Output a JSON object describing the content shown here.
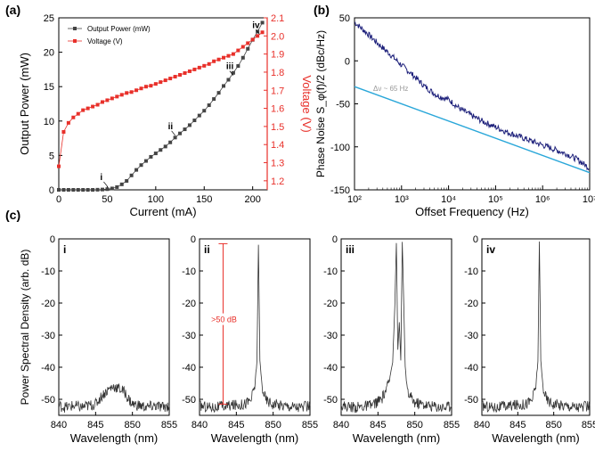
{
  "panel_labels": {
    "a": "(a)",
    "b": "(b)",
    "c": "(c)"
  },
  "colors": {
    "black": "#000000",
    "red": "#e8302a",
    "blue_trace": "#1c1f7a",
    "cyan_fit": "#2aa7d9"
  },
  "chart_data": [
    {
      "id": "a",
      "type": "line",
      "xlabel": "Current (mA)",
      "ylabel": "Output Power (mW)",
      "y2label": "Voltage (V)",
      "xlim": [
        0,
        215
      ],
      "ylim": [
        0,
        25
      ],
      "y2lim": [
        1.15,
        2.1
      ],
      "xticks": [
        0,
        50,
        100,
        150,
        200
      ],
      "yticks": [
        0,
        5,
        10,
        15,
        20,
        25
      ],
      "y2ticks": [
        1.2,
        1.3,
        1.4,
        1.5,
        1.6,
        1.7,
        1.8,
        1.9,
        2.0,
        2.1
      ],
      "legend_position": "top-left",
      "series": [
        {
          "name": "Output Power (mW)",
          "axis": "left",
          "color": "#444444",
          "x": [
            0,
            5,
            10,
            15,
            20,
            25,
            30,
            35,
            40,
            45,
            50,
            55,
            60,
            65,
            70,
            75,
            80,
            85,
            90,
            95,
            100,
            105,
            110,
            115,
            120,
            125,
            130,
            135,
            140,
            145,
            150,
            155,
            160,
            165,
            170,
            175,
            180,
            185,
            190,
            195,
            200,
            205,
            210
          ],
          "y": [
            0,
            0,
            0,
            0,
            0,
            0,
            0,
            0,
            0.02,
            0.05,
            0.1,
            0.2,
            0.4,
            0.8,
            1.3,
            2.1,
            2.9,
            3.6,
            4.2,
            4.8,
            5.3,
            5.8,
            6.3,
            6.9,
            7.6,
            8.2,
            8.8,
            9.4,
            10.1,
            10.8,
            11.5,
            12.3,
            13.2,
            14.1,
            15.1,
            16.0,
            17.0,
            18.0,
            19.2,
            20.5,
            21.8,
            23.0,
            24.3
          ]
        },
        {
          "name": "Voltage (V)",
          "axis": "right",
          "color": "#e8302a",
          "x": [
            0,
            5,
            10,
            15,
            20,
            25,
            30,
            35,
            40,
            45,
            50,
            55,
            60,
            65,
            70,
            75,
            80,
            85,
            90,
            95,
            100,
            105,
            110,
            115,
            120,
            125,
            130,
            135,
            140,
            145,
            150,
            155,
            160,
            165,
            170,
            175,
            180,
            185,
            190,
            195,
            200,
            205,
            210
          ],
          "y": [
            1.28,
            1.47,
            1.52,
            1.55,
            1.57,
            1.59,
            1.6,
            1.61,
            1.62,
            1.635,
            1.645,
            1.655,
            1.665,
            1.675,
            1.685,
            1.69,
            1.7,
            1.71,
            1.72,
            1.725,
            1.735,
            1.745,
            1.755,
            1.765,
            1.775,
            1.785,
            1.795,
            1.805,
            1.815,
            1.825,
            1.835,
            1.845,
            1.86,
            1.87,
            1.88,
            1.89,
            1.9,
            1.92,
            1.94,
            1.96,
            1.98,
            2.0,
            2.02
          ]
        }
      ],
      "annotations": [
        {
          "text": "i",
          "x": 50,
          "y": 0.4
        },
        {
          "text": "ii",
          "x": 120,
          "y": 7.8
        },
        {
          "text": "iii",
          "x": 180,
          "y": 16.5
        },
        {
          "text": "iv",
          "x": 207,
          "y": 22.5
        }
      ]
    },
    {
      "id": "b",
      "type": "line",
      "xlabel": "Offset Frequency (Hz)",
      "ylabel": "Phase Noise S_φ(f)/2 (dBc/Hz)",
      "xscale": "log",
      "xlim": [
        100,
        10000000
      ],
      "ylim": [
        -150,
        50
      ],
      "xticks": [
        100,
        1000,
        10000,
        100000,
        1000000,
        10000000
      ],
      "xtick_labels": [
        "10²",
        "10³",
        "10⁴",
        "10⁵",
        "10⁶",
        "10⁷"
      ],
      "yticks": [
        -150,
        -100,
        -50,
        0,
        50
      ],
      "series": [
        {
          "name": "",
          "color": "#1c1f7a",
          "x": [
            100,
            178,
            316,
            562,
            1000,
            1778,
            3162,
            5623,
            10000,
            17783,
            31623,
            56234,
            100000,
            177828,
            316228,
            562341,
            1000000,
            1778279,
            3162278,
            5623413,
            10000000
          ],
          "y": [
            45,
            33,
            20,
            8,
            -5,
            -17,
            -30,
            -40,
            -45,
            -56,
            -64,
            -71,
            -77,
            -83,
            -88,
            -93,
            -98,
            -103,
            -108,
            -115,
            -125
          ]
        },
        {
          "name": "Δν ~ 65 Hz",
          "color": "#2aa7d9",
          "x": [
            100,
            10000000
          ],
          "y": [
            -30,
            -130
          ]
        }
      ],
      "annotations": [
        {
          "text": "Δν ~ 65 Hz",
          "x": 250,
          "y": -35
        }
      ]
    },
    {
      "id": "c-i",
      "type": "line",
      "panel_label": "i",
      "xlabel": "Wavelength (nm)",
      "ylabel": "Power Spectral Density (arb. dB)",
      "xlim": [
        840,
        855
      ],
      "ylim": [
        -55,
        0
      ],
      "xticks": [
        840,
        845,
        850,
        855
      ],
      "yticks": [
        -50,
        -40,
        -30,
        -20,
        -10,
        0
      ],
      "series": [
        {
          "name": "",
          "color": "#333333",
          "x": [
            840,
            841,
            842,
            843,
            844,
            845,
            845.5,
            846,
            846.5,
            847,
            847.5,
            848,
            848.5,
            849,
            849.5,
            850,
            851,
            852,
            853,
            854,
            855
          ],
          "y": [
            -52,
            -52.5,
            -52,
            -52.5,
            -52,
            -51.5,
            -50,
            -48.5,
            -47.5,
            -46.5,
            -46,
            -46.5,
            -47,
            -48,
            -50,
            -51.5,
            -52,
            -52.5,
            -52,
            -52.5,
            -52
          ]
        }
      ]
    },
    {
      "id": "c-ii",
      "type": "line",
      "panel_label": "ii",
      "xlabel": "Wavelength (nm)",
      "xlim": [
        840,
        855
      ],
      "ylim": [
        -55,
        0
      ],
      "xticks": [
        840,
        845,
        850,
        855
      ],
      "yticks": [
        -50,
        -40,
        -30,
        -20,
        -10,
        0
      ],
      "series": [
        {
          "name": "",
          "color": "#333333",
          "x": [
            840,
            842,
            844,
            846,
            847,
            847.5,
            847.8,
            848,
            848.2,
            848.5,
            849,
            850,
            852,
            854,
            855
          ],
          "y": [
            -52,
            -52.5,
            -52,
            -51.5,
            -50,
            -46,
            -38,
            -2,
            -38,
            -46,
            -50,
            -51.5,
            -52,
            -52.5,
            -52
          ]
        }
      ],
      "annotations": [
        {
          "text": ">50 dB",
          "x": 843.2,
          "y": -26
        }
      ]
    },
    {
      "id": "c-iii",
      "type": "line",
      "panel_label": "iii",
      "xlabel": "Wavelength (nm)",
      "xlim": [
        840,
        855
      ],
      "ylim": [
        -55,
        0
      ],
      "xticks": [
        840,
        845,
        850,
        855
      ],
      "yticks": [
        -50,
        -40,
        -30,
        -20,
        -10,
        0
      ],
      "series": [
        {
          "name": "",
          "color": "#333333",
          "x": [
            840,
            842,
            844,
            845.5,
            846.5,
            847,
            847.3,
            847.5,
            847.7,
            847.9,
            848.1,
            848.3,
            848.5,
            848.7,
            849,
            850,
            852,
            854,
            855
          ],
          "y": [
            -52,
            -52.5,
            -52,
            -50,
            -45,
            -38,
            -20,
            -1,
            -35,
            -26,
            -38,
            -1,
            -20,
            -40,
            -48,
            -51,
            -52,
            -52.5,
            -52
          ]
        }
      ]
    },
    {
      "id": "c-iv",
      "type": "line",
      "panel_label": "iv",
      "xlabel": "Wavelength (nm)",
      "xlim": [
        840,
        855
      ],
      "ylim": [
        -55,
        0
      ],
      "xticks": [
        840,
        845,
        850,
        855
      ],
      "yticks": [
        -50,
        -40,
        -30,
        -20,
        -10,
        0
      ],
      "series": [
        {
          "name": "",
          "color": "#333333",
          "x": [
            840,
            842,
            844,
            846,
            847,
            847.5,
            847.8,
            848,
            848.2,
            848.5,
            849,
            850,
            852,
            854,
            855
          ],
          "y": [
            -52,
            -52.5,
            -52,
            -51.5,
            -50,
            -46,
            -38,
            -1,
            -38,
            -46,
            -50,
            -51.5,
            -52,
            -52.5,
            -52
          ]
        }
      ]
    }
  ]
}
